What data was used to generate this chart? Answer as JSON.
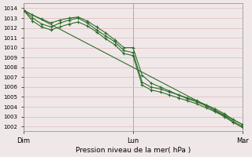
{
  "title": "",
  "xlabel": "Pression niveau de la mer( hPa )",
  "ylabel": "",
  "bg_color": "#f0e8e8",
  "grid_color": "#e0b8b8",
  "line_color": "#2d6e2d",
  "vline_color": "#555555",
  "x_ticks": [
    0,
    24,
    48
  ],
  "x_tick_labels": [
    "Dim",
    "Lun",
    "Mar"
  ],
  "ylim": [
    1001.5,
    1014.5
  ],
  "xlim": [
    0,
    48
  ],
  "yticks": [
    1002,
    1003,
    1004,
    1005,
    1006,
    1007,
    1008,
    1009,
    1010,
    1011,
    1012,
    1013,
    1014
  ],
  "straight_line_x": [
    0,
    48
  ],
  "straight_line_y": [
    1013.8,
    1002.2
  ],
  "series2_x": [
    0,
    2,
    4,
    6,
    8,
    10,
    12,
    14,
    16,
    18,
    20,
    22,
    24,
    26,
    28,
    30,
    32,
    34,
    36,
    38,
    40,
    42,
    44,
    46,
    48
  ],
  "series2_y": [
    1013.8,
    1013.0,
    1012.4,
    1012.1,
    1012.5,
    1012.8,
    1013.0,
    1012.5,
    1011.8,
    1011.2,
    1010.6,
    1009.7,
    1009.5,
    1006.5,
    1006.0,
    1005.8,
    1005.5,
    1005.2,
    1004.9,
    1004.6,
    1004.2,
    1003.8,
    1003.3,
    1002.7,
    1002.2
  ],
  "series3_x": [
    0,
    2,
    4,
    6,
    8,
    10,
    12,
    14,
    16,
    18,
    20,
    22,
    24,
    26,
    28,
    30,
    32,
    34,
    36,
    38,
    40,
    42,
    44,
    46,
    48
  ],
  "series3_y": [
    1013.8,
    1013.3,
    1012.9,
    1012.5,
    1012.8,
    1013.0,
    1013.1,
    1012.7,
    1012.1,
    1011.5,
    1010.8,
    1010.0,
    1010.0,
    1007.2,
    1006.4,
    1006.0,
    1005.6,
    1005.2,
    1004.8,
    1004.5,
    1004.1,
    1003.6,
    1003.1,
    1002.5,
    1002.0
  ],
  "series4_x": [
    0,
    2,
    4,
    6,
    8,
    10,
    12,
    14,
    16,
    18,
    20,
    22,
    24,
    26,
    28,
    30,
    32,
    34,
    36,
    38,
    40,
    42,
    44,
    46,
    48
  ],
  "series4_y": [
    1013.8,
    1012.7,
    1012.1,
    1011.8,
    1012.1,
    1012.4,
    1012.6,
    1012.2,
    1011.6,
    1010.9,
    1010.3,
    1009.4,
    1009.2,
    1006.2,
    1005.7,
    1005.5,
    1005.2,
    1004.9,
    1004.6,
    1004.3,
    1003.9,
    1003.5,
    1003.0,
    1002.4,
    1001.9
  ]
}
